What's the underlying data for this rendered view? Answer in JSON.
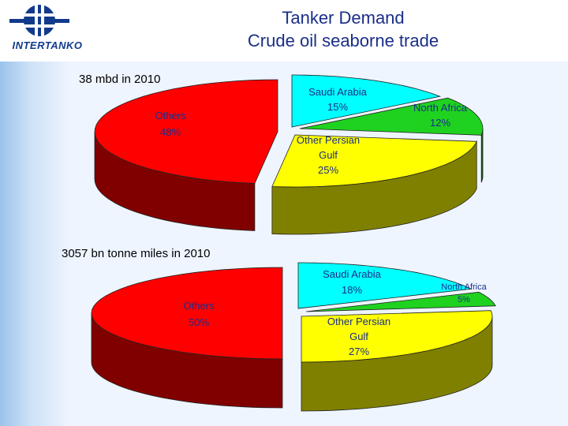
{
  "header": {
    "title_line1": "Tanker Demand",
    "title_line2": "Crude oil seaborne trade",
    "logo_text": "INTERTANKO"
  },
  "colors": {
    "others": "#ff0000",
    "saudi_arabia": "#00ffff",
    "north_africa": "#1fd21f",
    "other_persian_gulf": "#ffff00",
    "label_text": "#1a2e8a"
  },
  "chart_data": [
    {
      "type": "pie",
      "title": "38 mbd in 2010",
      "slices": [
        {
          "label": "Saudi Arabia",
          "value": 15,
          "value_label": "15%",
          "color": "#00ffff"
        },
        {
          "label": "North Africa",
          "value": 12,
          "value_label": "12%",
          "color": "#1fd21f"
        },
        {
          "label": "Other Persian Gulf",
          "value": 25,
          "value_label": "25%",
          "color": "#ffff00"
        },
        {
          "label": "Others",
          "value": 48,
          "value_label": "48%",
          "color": "#ff0000"
        }
      ]
    },
    {
      "type": "pie",
      "title": "3057 bn tonne miles in 2010",
      "slices": [
        {
          "label": "Saudi Arabia",
          "value": 18,
          "value_label": "18%",
          "color": "#00ffff"
        },
        {
          "label": "North Africa",
          "value": 5,
          "value_label": "5%",
          "color": "#1fd21f"
        },
        {
          "label": "Other Persian Gulf",
          "value": 27,
          "value_label": "27%",
          "color": "#ffff00"
        },
        {
          "label": "Others",
          "value": 50,
          "value_label": "50%",
          "color": "#ff0000"
        }
      ]
    }
  ]
}
